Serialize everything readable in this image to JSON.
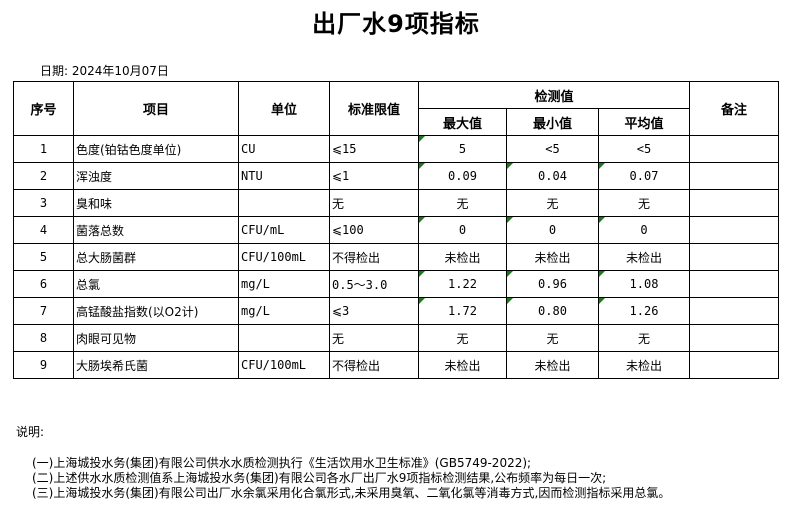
{
  "title": "出厂水9项指标",
  "date": "日期: 2024年10月07日",
  "headers": {
    "no": "序号",
    "item": "项目",
    "unit": "单位",
    "standard": "标准限值",
    "measured": "检测值",
    "max": "最大值",
    "min": "最小值",
    "avg": "平均值",
    "remark": "备注"
  },
  "rows": [
    {
      "no": "1",
      "item": "色度(铂钴色度单位)",
      "unit": "CU",
      "standard": "⩽15",
      "max": "5",
      "min": "<5",
      "avg": "<5",
      "flags": [
        true,
        false,
        false
      ]
    },
    {
      "no": "2",
      "item": "浑浊度",
      "unit": "NTU",
      "standard": "⩽1",
      "max": "0.09",
      "min": "0.04",
      "avg": "0.07",
      "flags": [
        true,
        true,
        true
      ]
    },
    {
      "no": "3",
      "item": "臭和味",
      "unit": "",
      "standard": "无",
      "max": "无",
      "min": "无",
      "avg": "无",
      "flags": [
        false,
        false,
        false
      ]
    },
    {
      "no": "4",
      "item": "菌落总数",
      "unit": "CFU/mL",
      "standard": "⩽100",
      "max": "0",
      "min": "0",
      "avg": "0",
      "flags": [
        true,
        true,
        true
      ]
    },
    {
      "no": "5",
      "item": "总大肠菌群",
      "unit": "CFU/100mL",
      "standard": "不得检出",
      "max": "未检出",
      "min": "未检出",
      "avg": "未检出",
      "flags": [
        false,
        false,
        false
      ]
    },
    {
      "no": "6",
      "item": "总氯",
      "unit": "mg/L",
      "standard": "0.5～3.0",
      "max": "1.22",
      "min": "0.96",
      "avg": "1.08",
      "flags": [
        true,
        true,
        true
      ]
    },
    {
      "no": "7",
      "item": "高锰酸盐指数(以O2计)",
      "unit": "mg/L",
      "standard": "⩽3",
      "max": "1.72",
      "min": "0.80",
      "avg": "1.26",
      "flags": [
        true,
        true,
        true
      ]
    },
    {
      "no": "8",
      "item": "肉眼可见物",
      "unit": "",
      "standard": "无",
      "max": "无",
      "min": "无",
      "avg": "无",
      "flags": [
        false,
        false,
        false
      ]
    },
    {
      "no": "9",
      "item": "大肠埃希氏菌",
      "unit": "CFU/100mL",
      "standard": "不得检出",
      "max": "未检出",
      "min": "未检出",
      "avg": "未检出",
      "flags": [
        false,
        false,
        false
      ]
    }
  ],
  "notes": {
    "label": "说明:",
    "items": [
      "(一)上海城投水务(集团)有限公司供水水质检测执行《生活饮用水卫生标准》(GB5749-2022);",
      "(二)上述供水水质检测值系上海城投水务(集团)有限公司各水厂出厂水9项指标检测结果,公布频率为每日一次;",
      "(三)上海城投水务(集团)有限公司出厂水余氯采用化合氯形式,未采用臭氧、二氧化氯等消毒方式,因而检测指标采用总氯。"
    ]
  },
  "colors": {
    "flag": "#1a7a1a"
  }
}
